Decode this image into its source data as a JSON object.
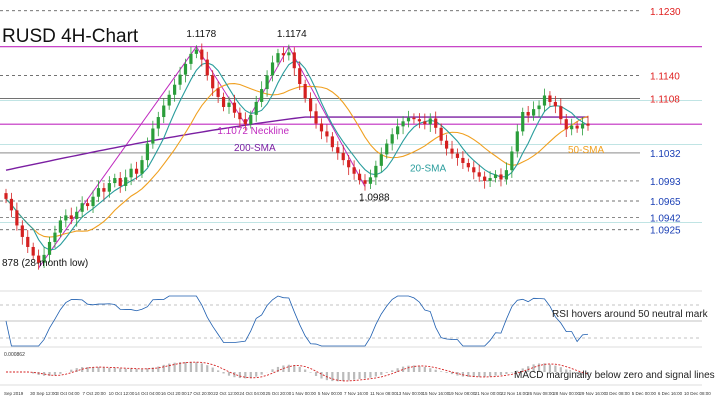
{
  "chart_data": {
    "type": "candlestick",
    "title": "RUSD 4H-Chart",
    "colors": {
      "up": "#2a9d3a",
      "down": "#d42020",
      "sma20": "#2a9d9d",
      "sma50": "#f0a020",
      "sma200": "#7b1fa2",
      "trendline": "#c02cc0",
      "neckline": "#c02cc0",
      "level_red": "#e02020",
      "level_blue": "#1a3fb5",
      "gridline": "#5ab8b8"
    },
    "levels": [
      {
        "label": "1.1230",
        "value": 1.123,
        "style": "dashed",
        "color": "red"
      },
      {
        "label": "1.1140",
        "value": 1.114,
        "style": "dashed",
        "color": "red"
      },
      {
        "label": "1.1108",
        "value": 1.1108,
        "style": "solid",
        "color": "red"
      },
      {
        "label": "1.1032",
        "value": 1.1032,
        "style": "solid",
        "color": "blue"
      },
      {
        "label": "1.0993",
        "value": 1.0993,
        "style": "dashed",
        "color": "blue"
      },
      {
        "label": "1.0965",
        "value": 1.0965,
        "style": "dashed",
        "color": "blue"
      },
      {
        "label": "1.0942",
        "value": 1.0942,
        "style": "dashed",
        "color": "blue"
      },
      {
        "label": "1.0925",
        "value": 1.0925,
        "style": "dashed",
        "color": "blue"
      }
    ],
    "annotations": {
      "peak1": "1.1178",
      "peak2": "1.1174",
      "neckline": "1.1072 Neckline",
      "sma200_label": "200-SMA",
      "sma20_label": "20-SMA",
      "sma50_label": "50-SMA",
      "trough": "1.0988",
      "low": "878 (28-month low)"
    },
    "price_range": [
      1.0855,
      1.1245
    ],
    "close": [
      1.0968,
      1.0952,
      1.0931,
      1.0915,
      1.0901,
      1.0889,
      1.0879,
      1.089,
      1.0908,
      1.0921,
      1.0938,
      1.0945,
      1.094,
      1.095,
      1.0962,
      1.0958,
      1.0971,
      1.0983,
      1.0978,
      1.099,
      1.0997,
      1.0986,
      1.0998,
      1.101,
      1.1003,
      1.1022,
      1.1045,
      1.1066,
      1.1082,
      1.1098,
      1.1113,
      1.1127,
      1.1141,
      1.1156,
      1.117,
      1.1176,
      1.1162,
      1.114,
      1.1122,
      1.111,
      1.1096,
      1.1102,
      1.1088,
      1.1079,
      1.1072,
      1.1085,
      1.1103,
      1.1121,
      1.114,
      1.1158,
      1.1171,
      1.1168,
      1.1172,
      1.115,
      1.1128,
      1.1108,
      1.109,
      1.1073,
      1.1062,
      1.1055,
      1.104,
      1.1032,
      1.1022,
      1.1012,
      1.1003,
      1.0994,
      1.0989,
      1.0998,
      1.1014,
      1.103,
      1.1045,
      1.1058,
      1.1069,
      1.1076,
      1.1081,
      1.1079,
      1.1076,
      1.1072,
      1.108,
      1.1067,
      1.1049,
      1.1038,
      1.1031,
      1.1025,
      1.1018,
      1.1012,
      1.1005,
      1.0999,
      1.0993,
      1.0997,
      1.1002,
      1.0995,
      1.1008,
      1.1034,
      1.1062,
      1.1089,
      1.1084,
      1.1093,
      1.1098,
      1.1112,
      1.1103,
      1.1097,
      1.1079,
      1.1065,
      1.107,
      1.1066,
      1.1073,
      1.107
    ],
    "rsi": {
      "label": "RSI hovers around 50 neutral mark",
      "levels": [
        30,
        50,
        70
      ]
    },
    "macd": {
      "label": "MACD marginally below zero and signal lines",
      "scale_label": "0.000862"
    },
    "x_ticks": [
      "Sep 2019",
      "30 Sep 12:00",
      "3 Oct 04:00",
      "7 Oct 20:00",
      "10 Oct 12:00",
      "14 Oct 04:00",
      "16 Oct 20:00",
      "17 Oct 20:00",
      "22 Oct 12:00",
      "24 Oct 04:00",
      "25 Oct 20:00",
      "1 Nov 00:00",
      "5 Nov 00:00",
      "7 Nov 16:00",
      "11 Nov 08:00",
      "13 Nov 00:00",
      "15 Nov 16:00",
      "19 Nov 08:00",
      "21 Nov 00:00",
      "22 Nov 16:00",
      "26 Nov 08:00",
      "28 Nov 00:00",
      "29 Nov 16:00",
      "3 Dec 08:00",
      "5 Dec 00:00",
      "6 Dec 16:00",
      "10 Dec 08:00"
    ]
  }
}
